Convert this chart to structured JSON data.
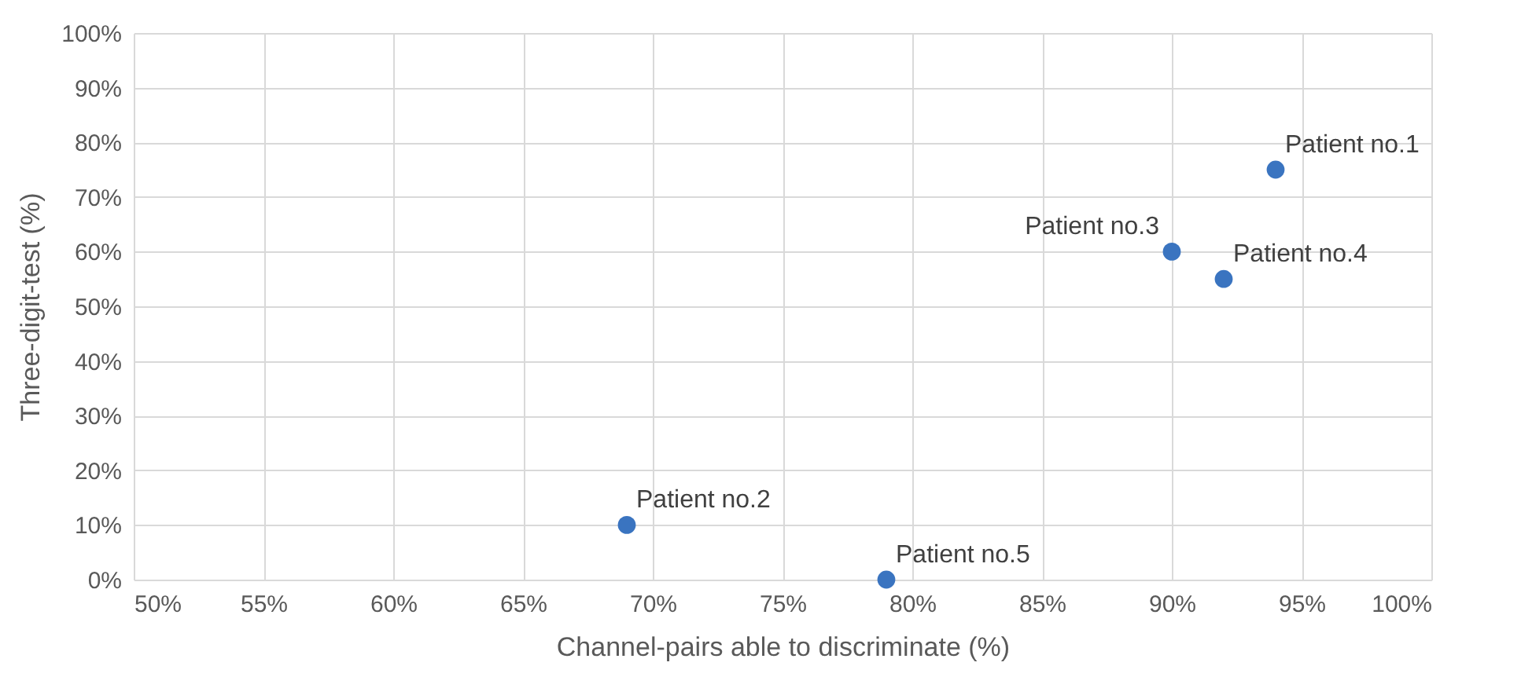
{
  "chart_data": {
    "type": "scatter",
    "xlabel": "Channel-pairs able to discriminate (%)",
    "ylabel": "Three-digit-test (%)",
    "x": [
      94,
      69,
      90,
      92,
      79
    ],
    "series": [
      {
        "color": "#3a74c0",
        "values": [
          75,
          10,
          60,
          55,
          0
        ]
      }
    ],
    "annotations": [
      {
        "text": "Patient no.1",
        "x": 94,
        "y": 75
      },
      {
        "text": "Patient no.2",
        "x": 69,
        "y": 10
      },
      {
        "text": "Patient no.3",
        "x": 90,
        "y": 60
      },
      {
        "text": "Patient no.4",
        "x": 92,
        "y": 55
      },
      {
        "text": "Patient no.5",
        "x": 79,
        "y": 0
      }
    ],
    "xlim": [
      50,
      100
    ],
    "ylim": [
      0,
      100
    ],
    "xticks": [
      {
        "value": 50,
        "label": "50%"
      },
      {
        "value": 55,
        "label": "55%"
      },
      {
        "value": 60,
        "label": "60%"
      },
      {
        "value": 65,
        "label": "65%"
      },
      {
        "value": 70,
        "label": "70%"
      },
      {
        "value": 75,
        "label": "75%"
      },
      {
        "value": 80,
        "label": "80%"
      },
      {
        "value": 85,
        "label": "85%"
      },
      {
        "value": 90,
        "label": "90%"
      },
      {
        "value": 95,
        "label": "95%"
      },
      {
        "value": 100,
        "label": "100%"
      }
    ],
    "yticks": [
      {
        "value": 0,
        "label": "0%"
      },
      {
        "value": 10,
        "label": "10%"
      },
      {
        "value": 20,
        "label": "20%"
      },
      {
        "value": 30,
        "label": "30%"
      },
      {
        "value": 40,
        "label": "40%"
      },
      {
        "value": 50,
        "label": "50%"
      },
      {
        "value": 60,
        "label": "60%"
      },
      {
        "value": 70,
        "label": "70%"
      },
      {
        "value": 80,
        "label": "80%"
      },
      {
        "value": 90,
        "label": "90%"
      },
      {
        "value": 100,
        "label": "100%"
      }
    ],
    "grid": true,
    "marker": "circle"
  }
}
